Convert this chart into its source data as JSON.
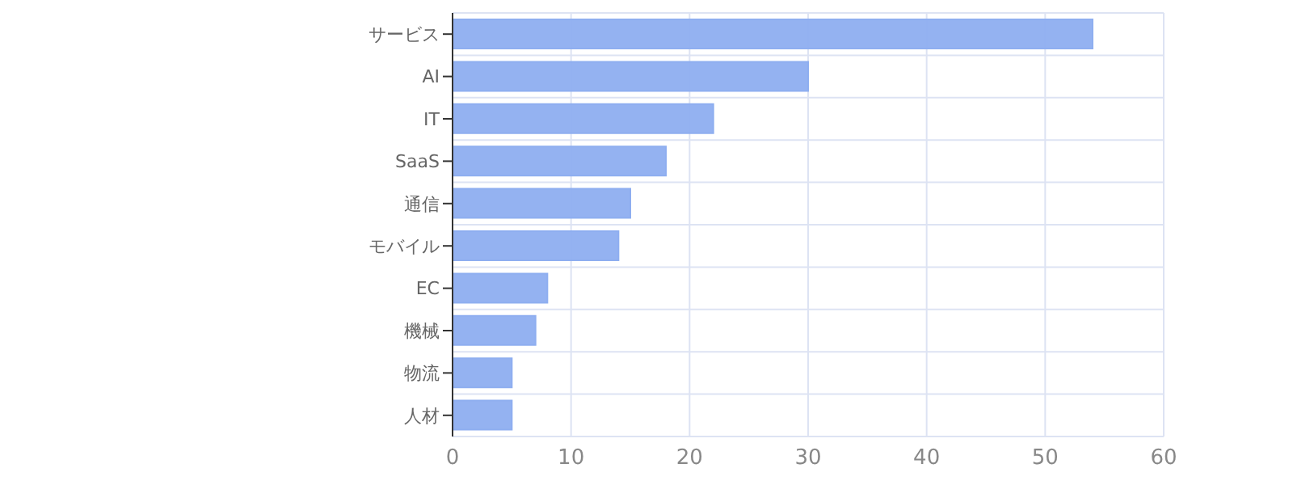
{
  "chart_data": {
    "type": "bar",
    "orientation": "horizontal",
    "categories": [
      "サービス",
      "AI",
      "IT",
      "SaaS",
      "通信",
      "モバイル",
      "EC",
      "機械",
      "物流",
      "人材"
    ],
    "values": [
      54,
      30,
      22,
      18,
      15,
      14,
      8,
      7,
      5,
      5
    ],
    "color": "#8eaef0",
    "xlim": [
      0,
      60
    ],
    "xticks": [
      0,
      10,
      20,
      30,
      40,
      50,
      60
    ],
    "grid": true
  }
}
